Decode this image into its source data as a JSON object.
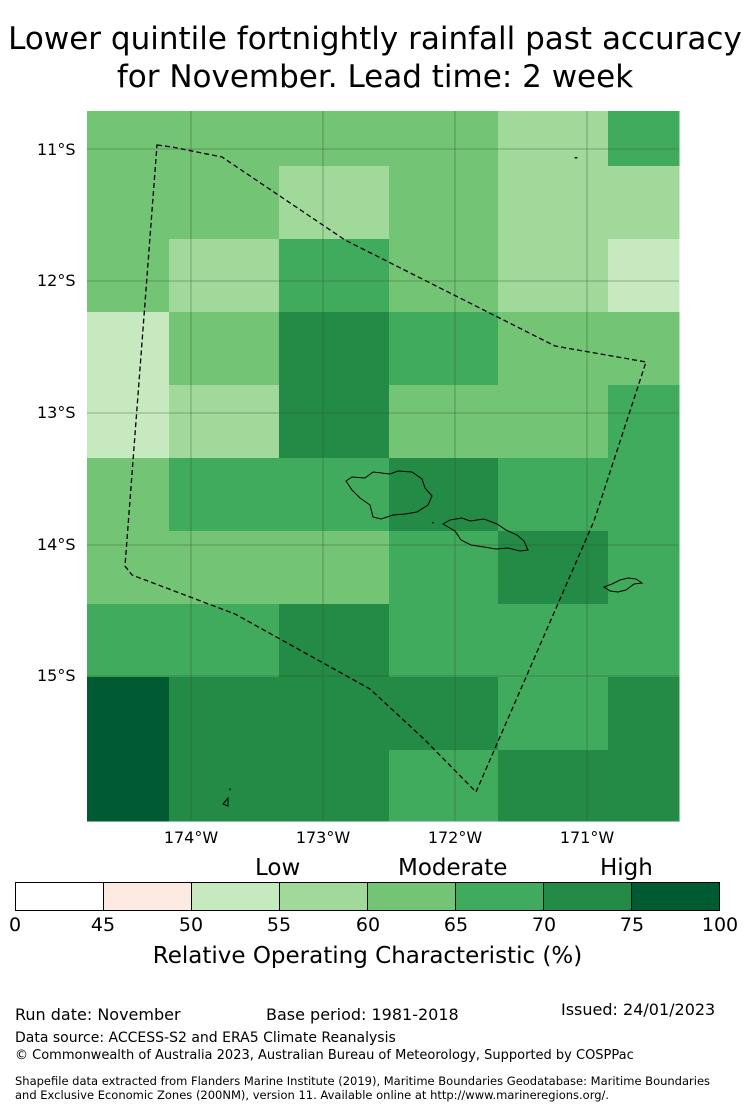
{
  "title": {
    "line1": "Lower quintile fortnightly rainfall past accuracy",
    "line2": "for November. Lead time: 2 week"
  },
  "map": {
    "lat_labels": [
      "11°S",
      "12°S",
      "13°S",
      "14°S",
      "15°S"
    ],
    "lon_labels": [
      "174°W",
      "173°W",
      "172°W",
      "171°W"
    ],
    "grid_values": [
      [
        62,
        62,
        62,
        62,
        57,
        62,
        67
      ],
      [
        62,
        62,
        57,
        62,
        57,
        57,
        57
      ],
      [
        62,
        57,
        67,
        62,
        57,
        57,
        52
      ],
      [
        52,
        62,
        72,
        67,
        62,
        62,
        62
      ],
      [
        52,
        57,
        72,
        62,
        62,
        62,
        67
      ],
      [
        62,
        67,
        67,
        72,
        67,
        67,
        67
      ],
      [
        62,
        62,
        62,
        67,
        72,
        72,
        67
      ],
      [
        67,
        67,
        72,
        67,
        67,
        67,
        67
      ],
      [
        80,
        72,
        72,
        72,
        67,
        67,
        72
      ],
      [
        80,
        72,
        72,
        67,
        72,
        72,
        72
      ]
    ]
  },
  "legend": {
    "categories": [
      "Low",
      "Moderate",
      "High"
    ],
    "bins": [
      {
        "from": 0,
        "to": 45,
        "color": "#ffffff"
      },
      {
        "from": 45,
        "to": 50,
        "color": "#fdeae0"
      },
      {
        "from": 50,
        "to": 55,
        "color": "#c7e9c0"
      },
      {
        "from": 55,
        "to": 60,
        "color": "#a1d99b"
      },
      {
        "from": 60,
        "to": 65,
        "color": "#74c476"
      },
      {
        "from": 65,
        "to": 70,
        "color": "#41ab5d"
      },
      {
        "from": 70,
        "to": 75,
        "color": "#238b45"
      },
      {
        "from": 75,
        "to": 100,
        "color": "#005a32"
      }
    ],
    "ticks": [
      "0",
      "45",
      "50",
      "55",
      "60",
      "65",
      "70",
      "75",
      "100"
    ],
    "label": "Relative Operating Characteristic (%)"
  },
  "footer": {
    "run_date": "Run date: November",
    "base_period": "Base period: 1981-2018",
    "issued": "Issued: 24/01/2023",
    "data_source": "Data source: ACCESS-S2 and ERA5 Climate Reanalysis",
    "copyright": "© Commonwealth of Australia 2023, Australian Bureau of Meteorology, Supported by COSPPac",
    "shapefile_line1": "Shapefile data extracted from Flanders Marine Institute (2019), Maritime Boundaries Geodatabase: Maritime Boundaries",
    "shapefile_line2": "and Exclusive Economic Zones (200NM), version 11. Available online at http://www.marineregions.org/."
  }
}
